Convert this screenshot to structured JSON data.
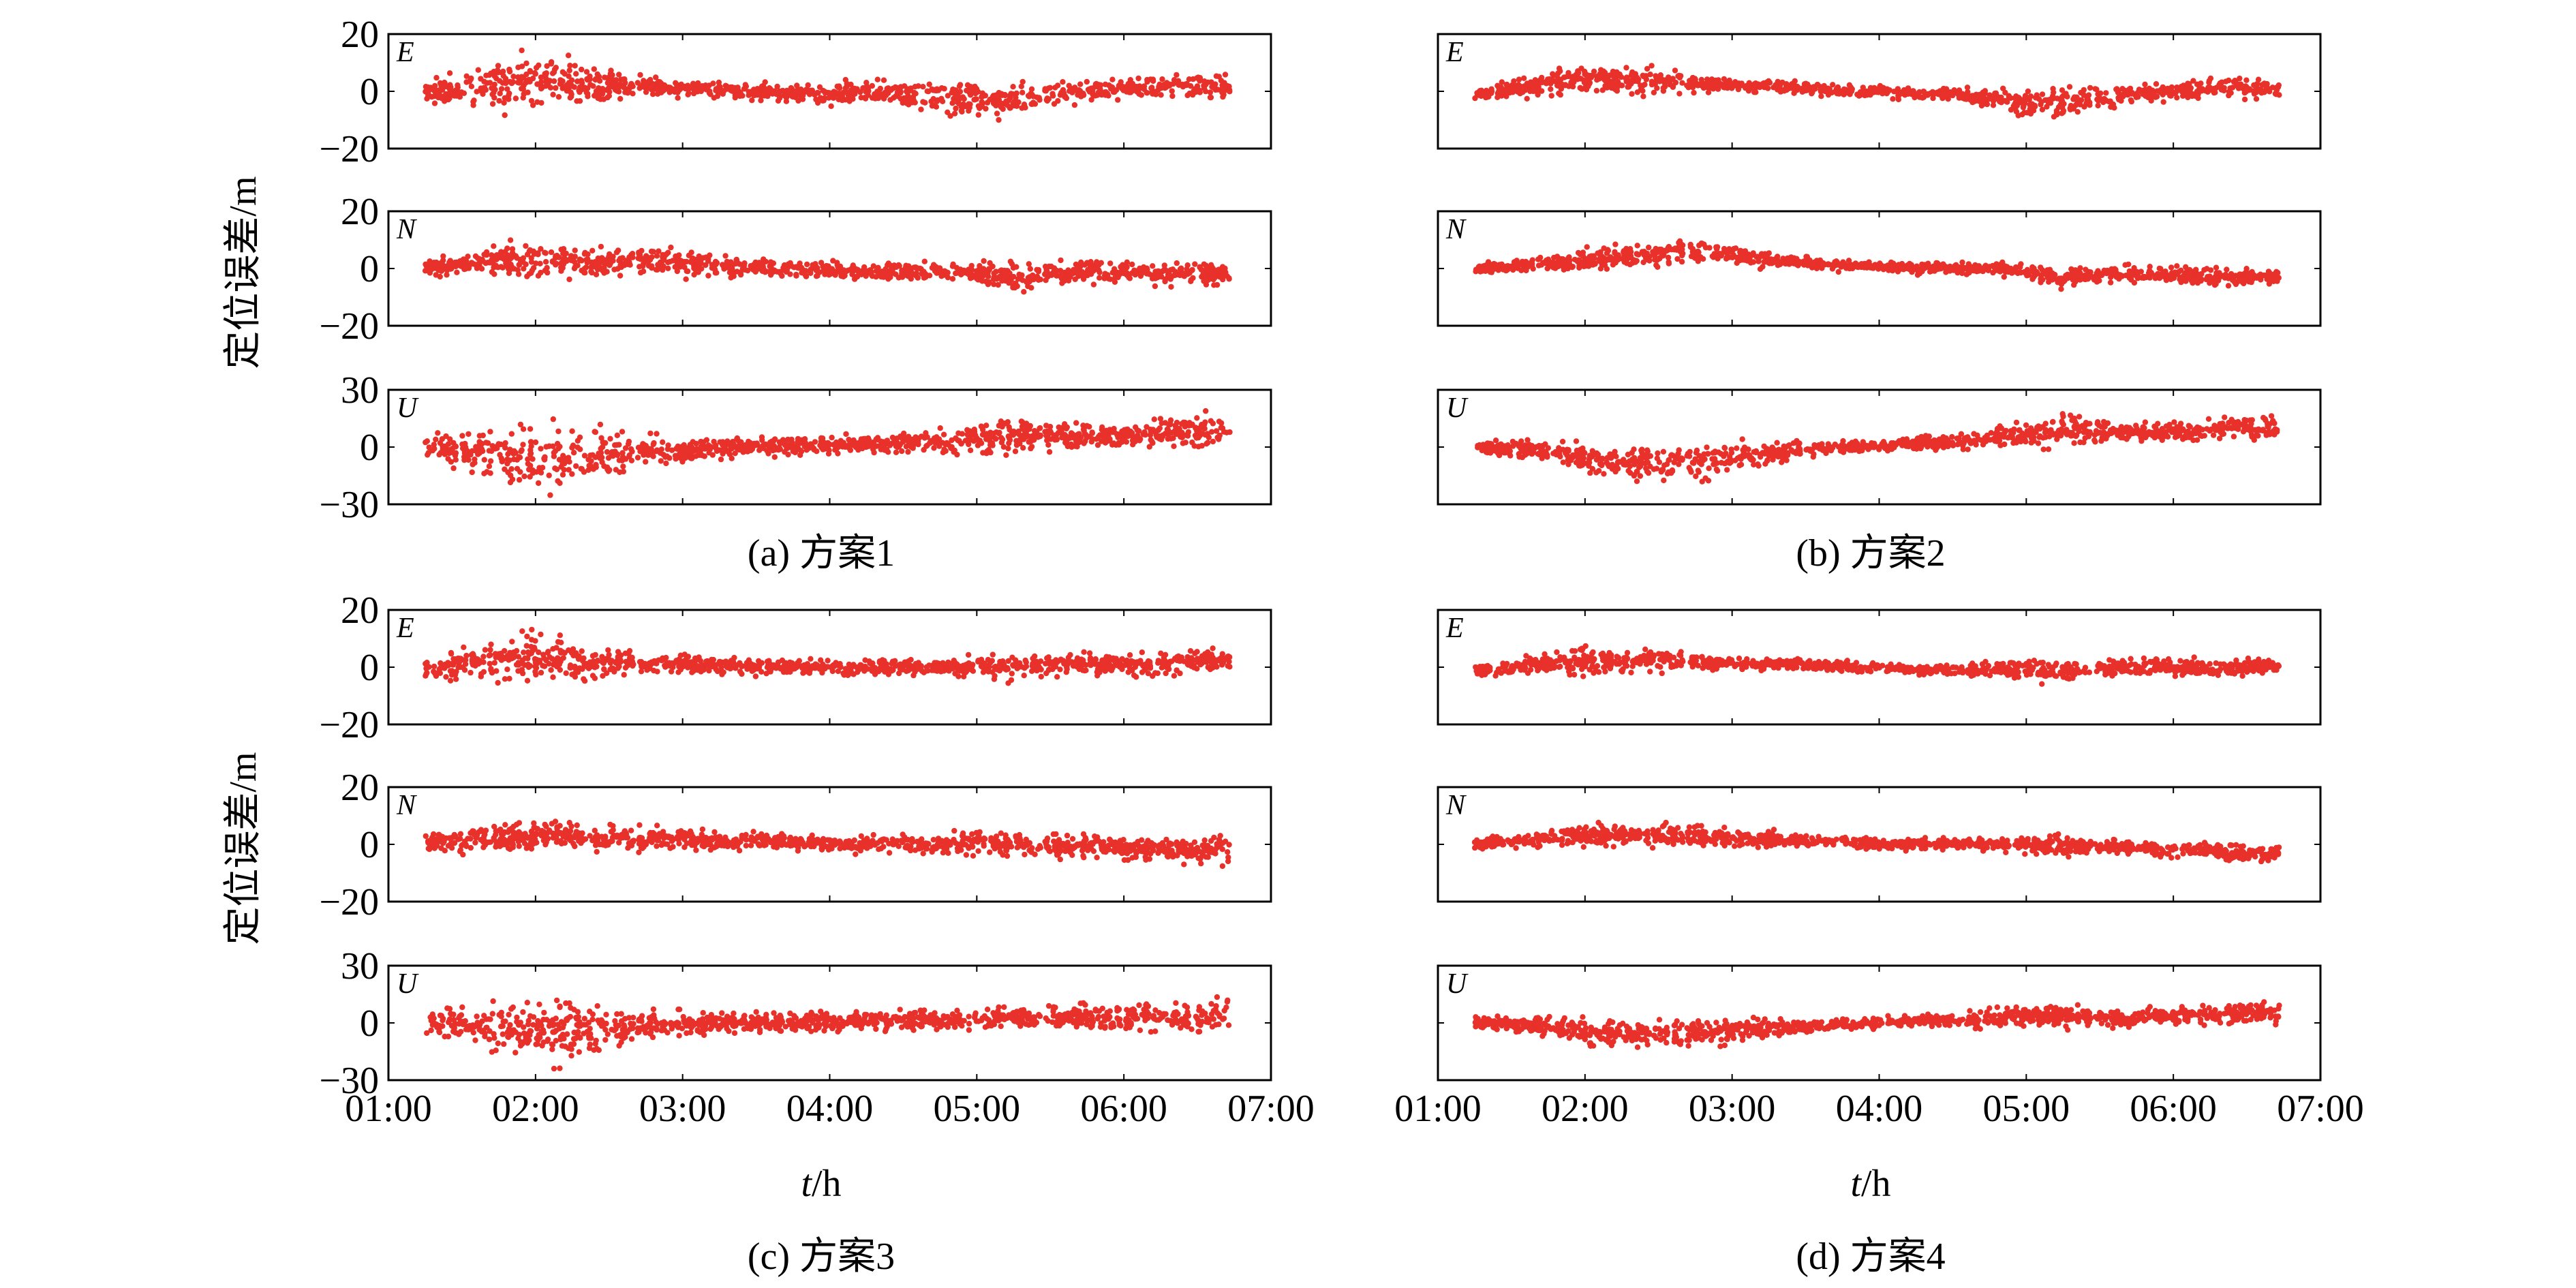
{
  "chart_data": {
    "type": "scatter",
    "ylabel": "定位误差/m",
    "xlabel_var": "t",
    "xlabel_unit": "/h",
    "x_ticks": [
      "01:00",
      "02:00",
      "03:00",
      "04:00",
      "05:00",
      "06:00",
      "07:00"
    ],
    "x_range_hours": [
      1.0,
      7.0
    ],
    "data_span_hours": [
      1.25,
      6.72
    ],
    "gap_hours": [
      2.68,
      5.45
    ],
    "marker_color": "#e8312a",
    "grid": false,
    "legend": "none",
    "components": [
      {
        "name": "E",
        "ylim": [
          -20,
          20
        ],
        "yticks": [
          "20",
          "0",
          "−20"
        ]
      },
      {
        "name": "N",
        "ylim": [
          -20,
          20
        ],
        "yticks": [
          "20",
          "0",
          "−20"
        ]
      },
      {
        "name": "U",
        "ylim": [
          -30,
          30
        ],
        "yticks": [
          "30",
          "0",
          "−30"
        ]
      }
    ],
    "panels": [
      {
        "caption": "(a) 方案1",
        "series": [
          {
            "name": "E",
            "x": [
              1.25,
              1.5,
              1.75,
              2.0,
              2.25,
              2.5,
              2.75,
              3.0,
              3.25,
              3.5,
              3.75,
              4.0,
              4.25,
              4.5,
              4.75,
              5.0,
              5.25,
              5.5,
              5.75,
              6.0,
              6.25,
              6.5,
              6.72
            ],
            "center": [
              0,
              1,
              3,
              4,
              3,
              2,
              2,
              1,
              1,
              0,
              -1,
              -1,
              0,
              -1,
              -2,
              -3,
              -3,
              -1,
              0,
              1,
              2,
              2,
              2
            ],
            "spread": [
              4,
              6,
              10,
              10,
              8,
              6,
              3,
              3,
              3,
              3,
              3,
              4,
              4,
              5,
              6,
              7,
              6,
              4,
              4,
              4,
              4,
              5,
              4
            ]
          },
          {
            "name": "N",
            "x": [
              1.25,
              1.5,
              1.75,
              2.0,
              2.25,
              2.5,
              2.75,
              3.0,
              3.25,
              3.5,
              3.75,
              4.0,
              4.25,
              4.5,
              4.75,
              5.0,
              5.25,
              5.5,
              5.75,
              6.0,
              6.25,
              6.5,
              6.72
            ],
            "center": [
              0,
              1,
              3,
              3,
              3,
              2,
              3,
              2,
              1,
              0,
              0,
              0,
              -1,
              -1,
              -1,
              -2,
              -3,
              -2,
              -1,
              -1,
              -2,
              -2,
              -2
            ],
            "spread": [
              3,
              4,
              6,
              6,
              6,
              5,
              5,
              5,
              4,
              3,
              3,
              3,
              3,
              3,
              3,
              4,
              5,
              4,
              4,
              4,
              4,
              4,
              4
            ]
          },
          {
            "name": "U",
            "x": [
              1.25,
              1.5,
              1.75,
              2.0,
              2.25,
              2.5,
              2.75,
              3.0,
              3.25,
              3.5,
              3.75,
              4.0,
              4.25,
              4.5,
              4.75,
              5.0,
              5.25,
              5.5,
              5.75,
              6.0,
              6.25,
              6.5,
              6.72
            ],
            "center": [
              0,
              -2,
              -5,
              -6,
              -6,
              -4,
              -3,
              -2,
              -1,
              0,
              1,
              1,
              2,
              2,
              3,
              4,
              6,
              6,
              5,
              6,
              7,
              8,
              9
            ],
            "spread": [
              6,
              9,
              16,
              18,
              18,
              14,
              9,
              7,
              6,
              5,
              5,
              5,
              5,
              5,
              6,
              7,
              9,
              8,
              7,
              7,
              8,
              9,
              10
            ]
          }
        ]
      },
      {
        "caption": "(b) 方案2",
        "series": [
          {
            "name": "E",
            "x": [
              1.25,
              1.5,
              1.75,
              2.0,
              2.25,
              2.5,
              2.75,
              3.0,
              3.25,
              3.5,
              3.75,
              4.0,
              4.25,
              4.5,
              4.75,
              5.0,
              5.25,
              5.5,
              5.75,
              6.0,
              6.25,
              6.5,
              6.72
            ],
            "center": [
              -1,
              1,
              3,
              4,
              4,
              4,
              3,
              2,
              2,
              1,
              0,
              0,
              -1,
              -1,
              -2,
              -4,
              -4,
              -2,
              -1,
              0,
              1,
              1,
              0
            ],
            "spread": [
              2,
              3,
              5,
              5,
              5,
              5,
              3,
              2,
              2,
              2,
              2,
              2,
              2,
              2,
              3,
              5,
              5,
              4,
              3,
              3,
              4,
              4,
              3
            ]
          },
          {
            "name": "N",
            "x": [
              1.25,
              1.5,
              1.75,
              2.0,
              2.25,
              2.5,
              2.75,
              3.0,
              3.25,
              3.5,
              3.75,
              4.0,
              4.25,
              4.5,
              4.75,
              5.0,
              5.25,
              5.5,
              5.75,
              6.0,
              6.25,
              6.5,
              6.72
            ],
            "center": [
              0,
              1,
              2,
              3,
              4,
              5,
              6,
              5,
              3,
              2,
              1,
              1,
              0,
              0,
              0,
              -1,
              -3,
              -2,
              -2,
              -2,
              -3,
              -3,
              -3
            ],
            "spread": [
              2,
              2,
              3,
              4,
              4,
              5,
              5,
              4,
              3,
              2,
              2,
              2,
              2,
              2,
              2,
              3,
              4,
              3,
              3,
              3,
              3,
              3,
              3
            ]
          },
          {
            "name": "U",
            "x": [
              1.25,
              1.5,
              1.75,
              2.0,
              2.25,
              2.5,
              2.75,
              3.0,
              3.25,
              3.5,
              3.75,
              4.0,
              4.25,
              4.5,
              4.75,
              5.0,
              5.25,
              5.5,
              5.75,
              6.0,
              6.25,
              6.5,
              6.72
            ],
            "center": [
              0,
              -1,
              -3,
              -6,
              -8,
              -9,
              -8,
              -5,
              -3,
              -1,
              0,
              1,
              2,
              3,
              4,
              6,
              10,
              8,
              7,
              8,
              9,
              10,
              10
            ],
            "spread": [
              3,
              4,
              6,
              8,
              9,
              9,
              10,
              8,
              6,
              4,
              3,
              3,
              4,
              4,
              5,
              7,
              10,
              6,
              5,
              5,
              6,
              7,
              8
            ]
          }
        ]
      },
      {
        "caption": "(c) 方案3",
        "series": [
          {
            "name": "E",
            "x": [
              1.25,
              1.5,
              1.75,
              2.0,
              2.25,
              2.5,
              2.75,
              3.0,
              3.25,
              3.5,
              3.75,
              4.0,
              4.25,
              4.5,
              4.75,
              5.0,
              5.25,
              5.5,
              5.75,
              6.0,
              6.25,
              6.5,
              6.72
            ],
            "center": [
              0,
              1,
              2,
              3,
              2,
              2,
              1,
              1,
              1,
              0,
              0,
              0,
              0,
              0,
              0,
              0,
              0,
              1,
              1,
              1,
              1,
              2,
              2
            ],
            "spread": [
              4,
              5,
              8,
              9,
              7,
              6,
              3,
              3,
              3,
              3,
              3,
              3,
              3,
              3,
              3,
              4,
              5,
              4,
              4,
              4,
              4,
              4,
              4
            ]
          },
          {
            "name": "N",
            "x": [
              1.25,
              1.5,
              1.75,
              2.0,
              2.25,
              2.5,
              2.75,
              3.0,
              3.25,
              3.5,
              3.75,
              4.0,
              4.25,
              4.5,
              4.75,
              5.0,
              5.25,
              5.5,
              5.75,
              6.0,
              6.25,
              6.5,
              6.72
            ],
            "center": [
              0,
              1,
              2,
              3,
              3,
              2,
              2,
              2,
              1,
              1,
              1,
              0,
              0,
              0,
              0,
              1,
              0,
              -1,
              -1,
              -1,
              -2,
              -2,
              -2
            ],
            "spread": [
              3,
              4,
              5,
              5,
              5,
              5,
              4,
              4,
              3,
              3,
              3,
              3,
              3,
              3,
              3,
              5,
              4,
              4,
              4,
              4,
              4,
              5,
              5
            ]
          },
          {
            "name": "U",
            "x": [
              1.25,
              1.5,
              1.75,
              2.0,
              2.25,
              2.5,
              2.75,
              3.0,
              3.25,
              3.5,
              3.75,
              4.0,
              4.25,
              4.5,
              4.75,
              5.0,
              5.25,
              5.5,
              5.75,
              6.0,
              6.25,
              6.5,
              6.72
            ],
            "center": [
              0,
              -1,
              -3,
              -5,
              -5,
              -3,
              -2,
              -1,
              0,
              0,
              0,
              1,
              1,
              1,
              2,
              2,
              2,
              2,
              3,
              3,
              4,
              4,
              4
            ],
            "spread": [
              6,
              8,
              13,
              17,
              16,
              12,
              8,
              7,
              6,
              5,
              5,
              5,
              5,
              6,
              6,
              6,
              6,
              6,
              7,
              7,
              8,
              8,
              9
            ]
          }
        ]
      },
      {
        "caption": "(d) 方案4",
        "series": [
          {
            "name": "E",
            "x": [
              1.25,
              1.5,
              1.75,
              2.0,
              2.25,
              2.5,
              2.75,
              3.0,
              3.25,
              3.5,
              3.75,
              4.0,
              4.25,
              4.5,
              4.75,
              5.0,
              5.25,
              5.5,
              5.75,
              6.0,
              6.25,
              6.5,
              6.72
            ],
            "center": [
              -1,
              0,
              1,
              2,
              2,
              2,
              2,
              1,
              1,
              1,
              0,
              0,
              -1,
              -1,
              -1,
              -1,
              -2,
              0,
              0,
              0,
              0,
              0,
              0
            ],
            "spread": [
              2,
              3,
              4,
              5,
              4,
              4,
              3,
              2,
              2,
              2,
              2,
              2,
              2,
              2,
              3,
              4,
              4,
              3,
              3,
              3,
              3,
              3,
              3
            ]
          },
          {
            "name": "N",
            "x": [
              1.25,
              1.5,
              1.75,
              2.0,
              2.25,
              2.5,
              2.75,
              3.0,
              3.25,
              3.5,
              3.75,
              4.0,
              4.25,
              4.5,
              4.75,
              5.0,
              5.25,
              5.5,
              5.75,
              6.0,
              6.25,
              6.5,
              6.72
            ],
            "center": [
              0,
              1,
              2,
              3,
              3,
              3,
              3,
              2,
              2,
              1,
              1,
              0,
              0,
              0,
              0,
              0,
              -1,
              -1,
              -1,
              -2,
              -2,
              -3,
              -3
            ],
            "spread": [
              2,
              2,
              3,
              4,
              4,
              4,
              4,
              3,
              3,
              2,
              2,
              2,
              2,
              2,
              2,
              3,
              4,
              3,
              3,
              3,
              3,
              3,
              3
            ]
          },
          {
            "name": "U",
            "x": [
              1.25,
              1.5,
              1.75,
              2.0,
              2.25,
              2.5,
              2.75,
              3.0,
              3.25,
              3.5,
              3.75,
              4.0,
              4.25,
              4.5,
              4.75,
              5.0,
              5.25,
              5.5,
              5.75,
              6.0,
              6.25,
              6.5,
              6.72
            ],
            "center": [
              0,
              -1,
              -2,
              -5,
              -6,
              -6,
              -6,
              -4,
              -3,
              -2,
              -1,
              0,
              1,
              1,
              2,
              3,
              4,
              3,
              3,
              4,
              4,
              5,
              5
            ],
            "spread": [
              3,
              4,
              5,
              7,
              8,
              8,
              8,
              6,
              5,
              4,
              3,
              3,
              3,
              4,
              5,
              6,
              7,
              5,
              5,
              5,
              5,
              6,
              7
            ]
          }
        ]
      }
    ]
  }
}
